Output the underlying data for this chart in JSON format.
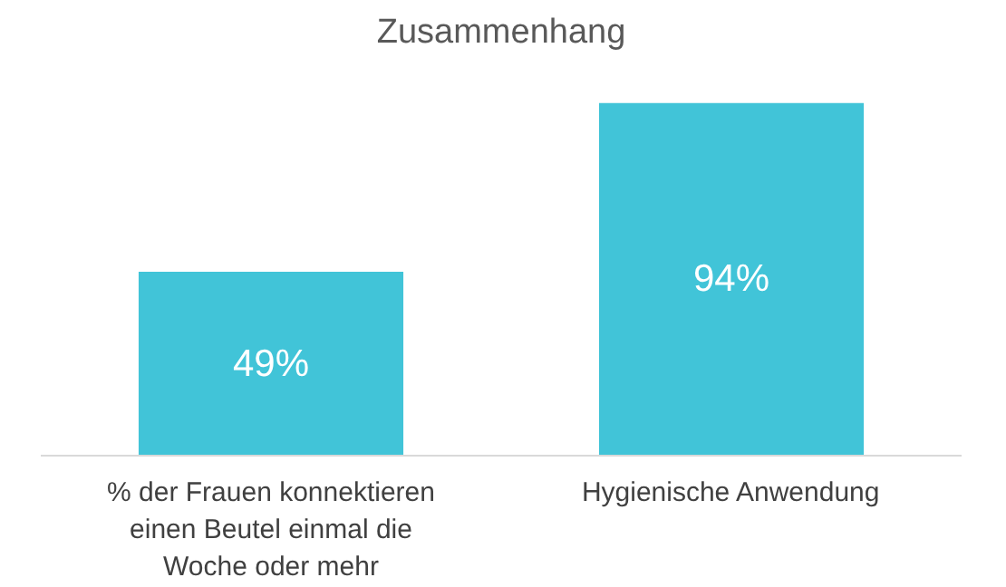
{
  "chart_data": {
    "type": "bar",
    "title": "Zusammenhang",
    "categories": [
      "% der Frauen konnektieren einen Beutel einmal die Woche oder mehr",
      "Hygienische Anwendung"
    ],
    "values": [
      49,
      94
    ],
    "value_labels": [
      "49%",
      "94%"
    ],
    "color": "#41c4d8",
    "grid": false,
    "tick_labels": "x"
  }
}
